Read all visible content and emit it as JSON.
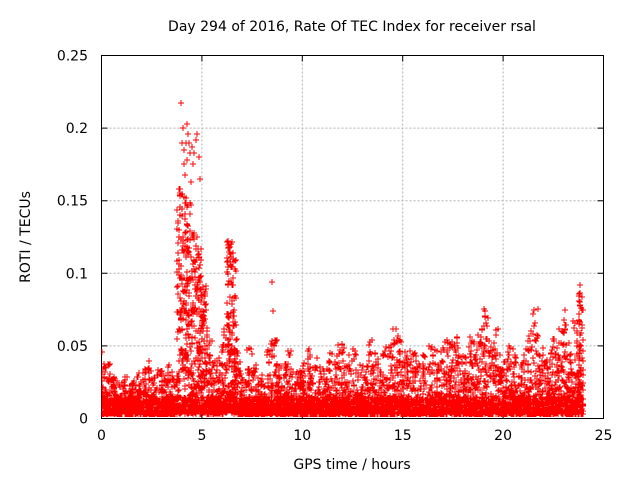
{
  "chart_data": {
    "type": "scatter",
    "title": "Day 294 of 2016, Rate Of TEC Index for receiver rsal",
    "xlabel": "GPS time / hours",
    "ylabel": "ROTI / TECUs",
    "xlim": [
      0,
      25
    ],
    "ylim": [
      0,
      0.25
    ],
    "xticks": [
      {
        "value": 0,
        "label": "0"
      },
      {
        "value": 5,
        "label": "5"
      },
      {
        "value": 10,
        "label": "10"
      },
      {
        "value": 15,
        "label": "15"
      },
      {
        "value": 20,
        "label": "20"
      },
      {
        "value": 25,
        "label": "25"
      }
    ],
    "yticks": [
      {
        "value": 0,
        "label": "0"
      },
      {
        "value": 0.05,
        "label": "0.05"
      },
      {
        "value": 0.1,
        "label": "0.1"
      },
      {
        "value": 0.15,
        "label": "0.15"
      },
      {
        "value": 0.2,
        "label": "0.2"
      },
      {
        "value": 0.25,
        "label": "0.25"
      }
    ],
    "grid": true,
    "legend": "none",
    "marker": {
      "shape": "plus",
      "color": "#ff0000",
      "size": 7
    },
    "axis_color": "#000000",
    "grid_color": "#b0b0b0",
    "series": [
      {
        "name": "ROTI",
        "representation": "density-envelope",
        "t_start": 0,
        "t_end": 24,
        "bin_hours": 0.25,
        "baseline_floor": 0.003,
        "bin_max_roti": [
          0.046,
          0.038,
          0.03,
          0.026,
          0.03,
          0.024,
          0.026,
          0.032,
          0.034,
          0.042,
          0.028,
          0.036,
          0.03,
          0.042,
          0.034,
          0.16,
          0.155,
          0.15,
          0.13,
          0.12,
          0.095,
          0.06,
          0.042,
          0.05,
          0.07,
          0.122,
          0.115,
          0.048,
          0.028,
          0.05,
          0.046,
          0.03,
          0.024,
          0.052,
          0.055,
          0.038,
          0.044,
          0.048,
          0.038,
          0.034,
          0.04,
          0.048,
          0.038,
          0.042,
          0.035,
          0.048,
          0.044,
          0.052,
          0.057,
          0.044,
          0.05,
          0.046,
          0.04,
          0.054,
          0.048,
          0.044,
          0.05,
          0.052,
          0.062,
          0.058,
          0.046,
          0.054,
          0.048,
          0.038,
          0.044,
          0.054,
          0.048,
          0.046,
          0.054,
          0.058,
          0.06,
          0.048,
          0.046,
          0.058,
          0.054,
          0.062,
          0.076,
          0.054,
          0.066,
          0.044,
          0.04,
          0.05,
          0.044,
          0.042,
          0.048,
          0.072,
          0.076,
          0.05,
          0.042,
          0.048,
          0.058,
          0.07,
          0.075,
          0.052,
          0.068,
          0.092
        ],
        "peak_points": [
          [
            3.98,
            0.217
          ],
          [
            3.92,
            0.155
          ],
          [
            4.02,
            0.19
          ],
          [
            4.06,
            0.2
          ],
          [
            4.1,
            0.185
          ],
          [
            4.13,
            0.175
          ],
          [
            4.17,
            0.168
          ],
          [
            4.2,
            0.19
          ],
          [
            4.24,
            0.178
          ],
          [
            4.28,
            0.203
          ],
          [
            4.31,
            0.196
          ],
          [
            4.35,
            0.19
          ],
          [
            4.4,
            0.183
          ],
          [
            4.45,
            0.163
          ],
          [
            4.5,
            0.187
          ],
          [
            4.56,
            0.175
          ],
          [
            4.62,
            0.183
          ],
          [
            4.7,
            0.192
          ],
          [
            4.78,
            0.196
          ],
          [
            4.85,
            0.18
          ],
          [
            4.9,
            0.165
          ],
          [
            6.3,
            0.122
          ],
          [
            6.35,
            0.118
          ],
          [
            6.42,
            0.113
          ],
          [
            6.55,
            0.11
          ],
          [
            8.48,
            0.094
          ],
          [
            8.52,
            0.074
          ],
          [
            19.08,
            0.07
          ],
          [
            19.1,
            0.074
          ],
          [
            21.5,
            0.072
          ],
          [
            21.55,
            0.075
          ],
          [
            23.1,
            0.075
          ],
          [
            23.8,
            0.086
          ],
          [
            23.82,
            0.092
          ],
          [
            23.85,
            0.08
          ]
        ]
      }
    ]
  }
}
